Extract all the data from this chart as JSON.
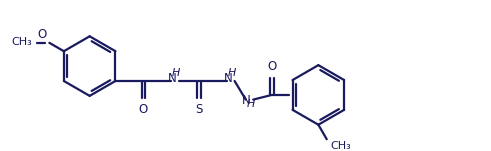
{
  "line_color": "#1a1a5e",
  "line_width": 1.6,
  "font_size": 8.5,
  "bg_color": "#ffffff",
  "figsize": [
    4.91,
    1.51
  ],
  "dpi": 100,
  "xlim": [
    0,
    491
  ],
  "ylim": [
    0,
    151
  ]
}
